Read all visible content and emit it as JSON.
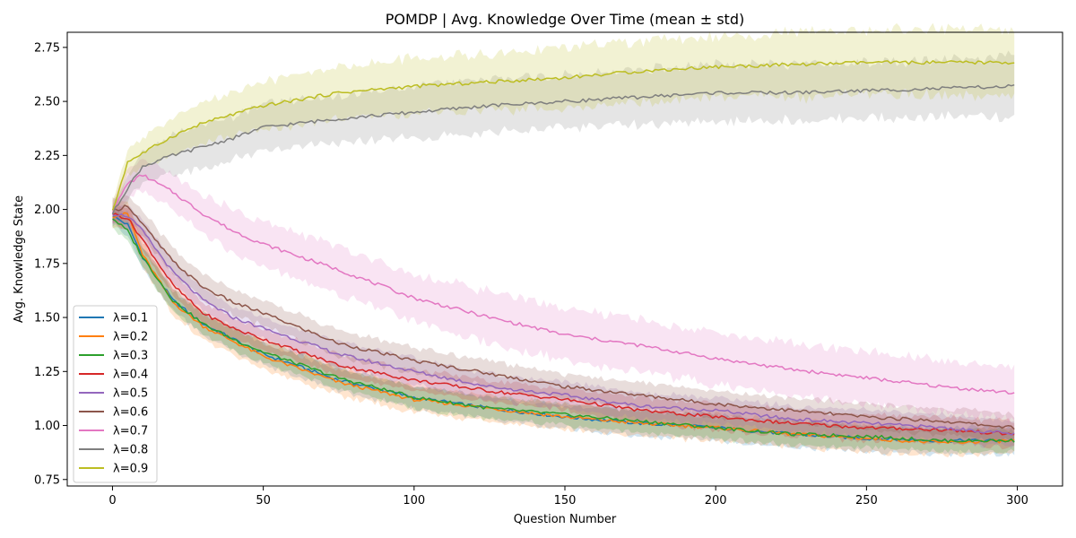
{
  "chart_data": {
    "type": "line",
    "title": "POMDP | Avg. Knowledge Over Time (mean ± std)",
    "xlabel": "Question Number",
    "ylabel": "Avg. Knowledge State",
    "xlim": [
      -15,
      315
    ],
    "ylim": [
      0.72,
      2.82
    ],
    "xticks": [
      0,
      50,
      100,
      150,
      200,
      250,
      300
    ],
    "yticks": [
      0.75,
      1.0,
      1.25,
      1.5,
      1.75,
      2.0,
      2.25,
      2.5,
      2.75
    ],
    "ytick_labels": [
      "0.75",
      "1.00",
      "1.25",
      "1.50",
      "1.75",
      "2.00",
      "2.25",
      "2.50",
      "2.75"
    ],
    "grid": false,
    "legend_position": "lower-left",
    "band": "mean ± std",
    "x": [
      0,
      5,
      10,
      20,
      30,
      40,
      50,
      75,
      100,
      125,
      150,
      175,
      200,
      225,
      250,
      275,
      299
    ],
    "series": [
      {
        "name": "λ=0.1",
        "color": "#1f77b4",
        "mean": [
          1.97,
          1.93,
          1.78,
          1.58,
          1.47,
          1.4,
          1.33,
          1.21,
          1.13,
          1.08,
          1.04,
          1.01,
          0.99,
          0.96,
          0.94,
          0.93,
          0.93
        ],
        "std": [
          0.04,
          0.05,
          0.05,
          0.05,
          0.05,
          0.05,
          0.05,
          0.05,
          0.05,
          0.05,
          0.05,
          0.06,
          0.06,
          0.06,
          0.06,
          0.06,
          0.06
        ]
      },
      {
        "name": "λ=0.2",
        "color": "#ff7f0e",
        "mean": [
          1.97,
          1.98,
          1.79,
          1.57,
          1.46,
          1.39,
          1.32,
          1.2,
          1.12,
          1.08,
          1.04,
          1.01,
          0.99,
          0.96,
          0.94,
          0.92,
          0.93
        ],
        "std": [
          0.05,
          0.06,
          0.06,
          0.06,
          0.06,
          0.06,
          0.06,
          0.06,
          0.06,
          0.06,
          0.06,
          0.06,
          0.06,
          0.06,
          0.06,
          0.06,
          0.06
        ]
      },
      {
        "name": "λ=0.3",
        "color": "#2ca02c",
        "mean": [
          1.96,
          1.9,
          1.78,
          1.58,
          1.47,
          1.4,
          1.34,
          1.22,
          1.13,
          1.08,
          1.05,
          1.02,
          0.99,
          0.96,
          0.95,
          0.93,
          0.93
        ],
        "std": [
          0.04,
          0.05,
          0.05,
          0.05,
          0.05,
          0.05,
          0.05,
          0.05,
          0.05,
          0.05,
          0.05,
          0.05,
          0.05,
          0.05,
          0.05,
          0.05,
          0.05
        ]
      },
      {
        "name": "λ=0.4",
        "color": "#d62728",
        "mean": [
          1.98,
          1.96,
          1.86,
          1.65,
          1.52,
          1.45,
          1.4,
          1.28,
          1.21,
          1.16,
          1.12,
          1.07,
          1.04,
          1.01,
          0.99,
          0.98,
          0.96
        ],
        "std": [
          0.04,
          0.05,
          0.05,
          0.05,
          0.05,
          0.05,
          0.05,
          0.05,
          0.05,
          0.05,
          0.05,
          0.06,
          0.06,
          0.06,
          0.06,
          0.06,
          0.06
        ]
      },
      {
        "name": "λ=0.5",
        "color": "#9467bd",
        "mean": [
          1.98,
          1.97,
          1.9,
          1.71,
          1.58,
          1.5,
          1.45,
          1.33,
          1.25,
          1.18,
          1.14,
          1.09,
          1.07,
          1.03,
          1.01,
          0.99,
          0.96
        ],
        "std": [
          0.04,
          0.05,
          0.05,
          0.05,
          0.05,
          0.05,
          0.05,
          0.06,
          0.06,
          0.06,
          0.06,
          0.06,
          0.06,
          0.06,
          0.06,
          0.06,
          0.06
        ]
      },
      {
        "name": "λ=0.6",
        "color": "#8c564b",
        "mean": [
          1.99,
          2.02,
          1.93,
          1.76,
          1.64,
          1.57,
          1.52,
          1.38,
          1.3,
          1.24,
          1.18,
          1.14,
          1.1,
          1.07,
          1.04,
          1.02,
          0.99
        ],
        "std": [
          0.05,
          0.05,
          0.06,
          0.06,
          0.06,
          0.06,
          0.06,
          0.06,
          0.06,
          0.06,
          0.06,
          0.06,
          0.06,
          0.06,
          0.06,
          0.06,
          0.06
        ]
      },
      {
        "name": "λ=0.7",
        "color": "#e377c2",
        "mean": [
          1.99,
          2.12,
          2.16,
          2.08,
          1.98,
          1.9,
          1.84,
          1.72,
          1.59,
          1.5,
          1.42,
          1.37,
          1.31,
          1.26,
          1.22,
          1.18,
          1.15
        ],
        "std": [
          0.05,
          0.06,
          0.07,
          0.08,
          0.09,
          0.1,
          0.1,
          0.11,
          0.11,
          0.12,
          0.12,
          0.12,
          0.12,
          0.12,
          0.12,
          0.12,
          0.12
        ]
      },
      {
        "name": "λ=0.8",
        "color": "#7f7f7f",
        "mean": [
          1.98,
          2.1,
          2.2,
          2.25,
          2.29,
          2.33,
          2.38,
          2.42,
          2.45,
          2.48,
          2.5,
          2.52,
          2.54,
          2.54,
          2.55,
          2.56,
          2.57
        ],
        "std": [
          0.04,
          0.06,
          0.07,
          0.09,
          0.1,
          0.1,
          0.11,
          0.11,
          0.12,
          0.12,
          0.12,
          0.13,
          0.13,
          0.13,
          0.13,
          0.13,
          0.14
        ]
      },
      {
        "name": "λ=0.9",
        "color": "#bcbd22",
        "mean": [
          1.99,
          2.22,
          2.26,
          2.34,
          2.4,
          2.44,
          2.48,
          2.54,
          2.57,
          2.59,
          2.61,
          2.64,
          2.66,
          2.67,
          2.68,
          2.68,
          2.68
        ],
        "std": [
          0.04,
          0.06,
          0.07,
          0.08,
          0.09,
          0.1,
          0.11,
          0.12,
          0.13,
          0.13,
          0.14,
          0.14,
          0.14,
          0.15,
          0.15,
          0.15,
          0.16
        ]
      }
    ]
  }
}
